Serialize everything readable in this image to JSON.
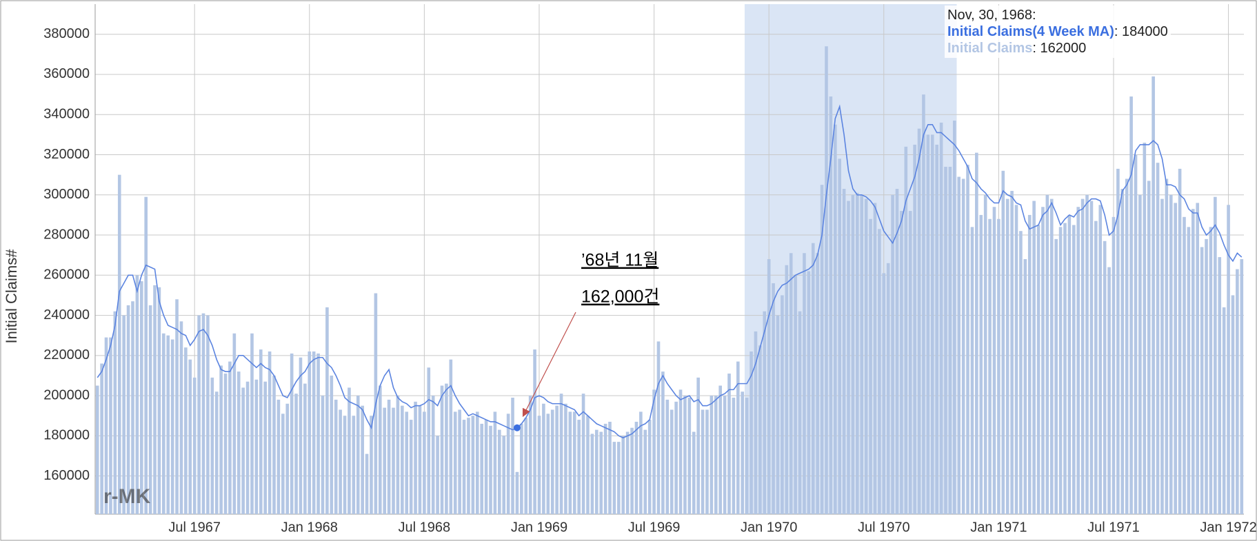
{
  "chart_data": {
    "type": "bar-line",
    "y_label": "Initial Claims#",
    "ylim": [
      141000,
      395000
    ],
    "yticks": [
      160000,
      180000,
      200000,
      220000,
      240000,
      260000,
      280000,
      300000,
      320000,
      340000,
      360000,
      380000
    ],
    "grid": true,
    "shaded_range": [
      147,
      194
    ],
    "shade_color": "#dae5f5",
    "watermark": "r-MK",
    "categories": [
      null,
      null,
      null,
      null,
      null,
      null,
      null,
      null,
      null,
      null,
      null,
      null,
      null,
      null,
      null,
      null,
      null,
      null,
      null,
      null,
      null,
      null,
      "Jul 1967",
      null,
      null,
      null,
      null,
      null,
      null,
      null,
      null,
      null,
      null,
      null,
      null,
      null,
      null,
      null,
      null,
      null,
      null,
      null,
      null,
      null,
      null,
      null,
      null,
      null,
      "Jan 1968",
      null,
      null,
      null,
      null,
      null,
      null,
      null,
      null,
      null,
      null,
      null,
      null,
      null,
      null,
      null,
      null,
      null,
      null,
      null,
      null,
      null,
      null,
      null,
      null,
      null,
      "Jul 1968",
      null,
      null,
      null,
      null,
      null,
      null,
      null,
      null,
      null,
      null,
      null,
      null,
      null,
      null,
      null,
      null,
      null,
      null,
      null,
      null,
      null,
      null,
      null,
      null,
      null,
      "Jan 1969",
      null,
      null,
      null,
      null,
      null,
      null,
      null,
      null,
      null,
      null,
      null,
      null,
      null,
      null,
      null,
      null,
      null,
      null,
      null,
      null,
      null,
      null,
      null,
      null,
      null,
      "Jul 1969",
      null,
      null,
      null,
      null,
      null,
      null,
      null,
      null,
      null,
      null,
      null,
      null,
      null,
      null,
      null,
      null,
      null,
      null,
      null,
      null,
      null,
      null,
      null,
      null,
      null,
      "Jan 1970",
      null,
      null,
      null,
      null,
      null,
      null,
      null,
      null,
      null,
      null,
      null,
      null,
      null,
      null,
      null,
      null,
      null,
      null,
      null,
      null,
      null,
      null,
      null,
      null,
      null,
      "Jul 1970",
      null,
      null,
      null,
      null,
      null,
      null,
      null,
      null,
      null,
      null,
      null,
      null,
      null,
      null,
      null,
      null,
      null,
      null,
      null,
      null,
      null,
      null,
      null,
      null,
      null,
      "Jan 1971",
      null,
      null,
      null,
      null,
      null,
      null,
      null,
      null,
      null,
      null,
      null,
      null,
      null,
      null,
      null,
      null,
      null,
      null,
      null,
      null,
      null,
      null,
      null,
      null,
      null,
      "Jul 1971",
      null,
      null,
      null,
      null,
      null,
      null,
      null,
      null,
      null,
      null,
      null,
      null,
      null,
      null,
      null,
      null,
      null,
      null,
      null,
      null,
      null,
      null,
      null,
      null,
      null,
      "Jan 1972",
      null,
      null,
      null
    ],
    "series": [
      {
        "name": "Initial Claims",
        "color": "#b3c6e4",
        "values": [
          205000,
          216000,
          229000,
          229000,
          242000,
          310000,
          240000,
          245000,
          247000,
          260000,
          257000,
          299000,
          245000,
          255000,
          254000,
          231000,
          230000,
          228000,
          248000,
          237000,
          224000,
          218000,
          209000,
          240000,
          241000,
          240000,
          209000,
          202000,
          215000,
          211000,
          217000,
          231000,
          212000,
          204000,
          207000,
          231000,
          208000,
          223000,
          207000,
          222000,
          210000,
          198000,
          191000,
          196000,
          221000,
          201000,
          219000,
          206000,
          222000,
          222000,
          221000,
          200000,
          244000,
          210000,
          198000,
          193000,
          190000,
          204000,
          190000,
          200000,
          195000,
          171000,
          190000,
          251000,
          205000,
          194000,
          198000,
          194000,
          200000,
          195000,
          192000,
          188000,
          197000,
          195000,
          192000,
          214000,
          200000,
          180000,
          205000,
          206000,
          218000,
          192000,
          193000,
          188000,
          189000,
          190000,
          192000,
          186000,
          188000,
          185000,
          192000,
          183000,
          180000,
          191000,
          199000,
          162000,
          186000,
          189000,
          200000,
          223000,
          190000,
          196000,
          191000,
          193000,
          195000,
          201000,
          196000,
          192000,
          192000,
          188000,
          201000,
          190000,
          181000,
          183000,
          182000,
          186000,
          187000,
          177000,
          177000,
          180000,
          182000,
          184000,
          187000,
          192000,
          183000,
          188000,
          203000,
          227000,
          212000,
          198000,
          193000,
          197000,
          203000,
          200000,
          199000,
          182000,
          209000,
          193000,
          193000,
          200000,
          200000,
          205000,
          200000,
          211000,
          199000,
          217000,
          202000,
          199000,
          222000,
          232000,
          225000,
          242000,
          268000,
          256000,
          240000,
          250000,
          265000,
          271000,
          260000,
          242000,
          271000,
          262000,
          276000,
          271000,
          305000,
          374000,
          349000,
          335000,
          318000,
          303000,
          297000,
          300000,
          301000,
          300000,
          298000,
          288000,
          296000,
          283000,
          261000,
          266000,
          300000,
          303000,
          292000,
          324000,
          292000,
          325000,
          333000,
          350000,
          330000,
          330000,
          325000,
          336000,
          314000,
          314000,
          337000,
          309000,
          308000,
          315000,
          284000,
          321000,
          290000,
          300000,
          288000,
          294000,
          288000,
          312000,
          298000,
          302000,
          295000,
          282000,
          268000,
          290000,
          297000,
          285000,
          294000,
          300000,
          298000,
          278000,
          284000,
          286000,
          290000,
          285000,
          294000,
          298000,
          300000,
          297000,
          287000,
          295000,
          277000,
          264000,
          289000,
          313000,
          303000,
          308000,
          349000,
          320000,
          300000,
          326000,
          307000,
          359000,
          316000,
          298000,
          308000,
          300000,
          296000,
          313000,
          289000,
          284000,
          293000,
          296000,
          274000,
          278000,
          284000,
          299000,
          269000,
          244000,
          295000,
          250000,
          263000,
          268000
        ]
      },
      {
        "name": "Initial Claims(4 Week MA)",
        "color": "#5b84e0",
        "values": [
          209000,
          212000,
          218000,
          225000,
          235000,
          252000,
          256000,
          260000,
          260000,
          252000,
          260000,
          265000,
          264000,
          263000,
          247000,
          240000,
          235000,
          234000,
          233000,
          231000,
          230000,
          225000,
          228000,
          232000,
          233000,
          230000,
          225000,
          218000,
          213000,
          212000,
          212000,
          216000,
          220000,
          220000,
          218000,
          216000,
          214000,
          216000,
          214000,
          213000,
          210000,
          205000,
          200000,
          199000,
          203000,
          207000,
          210000,
          212000,
          216000,
          218000,
          219000,
          219000,
          216000,
          214000,
          210000,
          205000,
          199000,
          197000,
          196000,
          195000,
          193000,
          188000,
          184000,
          196000,
          205000,
          210000,
          213000,
          204000,
          199000,
          197000,
          196000,
          194000,
          195000,
          195000,
          196000,
          198000,
          197000,
          195000,
          200000,
          203000,
          205000,
          200000,
          196000,
          193000,
          190000,
          191000,
          190000,
          189000,
          188000,
          187000,
          187000,
          186000,
          185000,
          184000,
          183000,
          184000,
          186000,
          189000,
          193000,
          199000,
          200000,
          199000,
          197000,
          196000,
          196000,
          196000,
          195000,
          194000,
          193000,
          190000,
          192000,
          190000,
          188000,
          186000,
          185000,
          184000,
          183000,
          182000,
          180000,
          179000,
          180000,
          181000,
          183000,
          185000,
          186000,
          188000,
          198000,
          206000,
          210000,
          206000,
          203000,
          200000,
          198000,
          199000,
          200000,
          197000,
          198000,
          195000,
          195000,
          196000,
          198000,
          200000,
          201000,
          203000,
          203000,
          206000,
          206000,
          206000,
          210000,
          216000,
          224000,
          232000,
          240000,
          247000,
          252000,
          255000,
          256000,
          258000,
          260000,
          261000,
          262000,
          263000,
          265000,
          270000,
          280000,
          300000,
          318000,
          338000,
          344000,
          330000,
          312000,
          303000,
          300000,
          300000,
          299000,
          297000,
          294000,
          288000,
          282000,
          279000,
          276000,
          281000,
          287000,
          297000,
          303000,
          309000,
          318000,
          330000,
          335000,
          335000,
          331000,
          331000,
          329000,
          327000,
          325000,
          322000,
          318000,
          314000,
          308000,
          306000,
          303000,
          301000,
          298000,
          296000,
          296000,
          302000,
          300000,
          299000,
          296000,
          295000,
          287000,
          283000,
          284000,
          285000,
          290000,
          292000,
          296000,
          291000,
          285000,
          288000,
          290000,
          289000,
          292000,
          293000,
          296000,
          298000,
          298000,
          297000,
          290000,
          280000,
          282000,
          290000,
          302000,
          305000,
          310000,
          322000,
          325000,
          325000,
          325000,
          327000,
          325000,
          318000,
          305000,
          305000,
          304000,
          300000,
          298000,
          293000,
          291000,
          291000,
          284000,
          280000,
          282000,
          285000,
          281000,
          275000,
          270000,
          267000,
          271000,
          269000
        ]
      }
    ],
    "tooltip": {
      "title": "Nov, 30, 1968:",
      "name_colors": [
        "#b3c6e4",
        "#3b6fe0"
      ]
    },
    "annotation": {
      "lines": [
        "’68년 11월",
        "162,000건"
      ],
      "color": "#c0504d"
    }
  }
}
